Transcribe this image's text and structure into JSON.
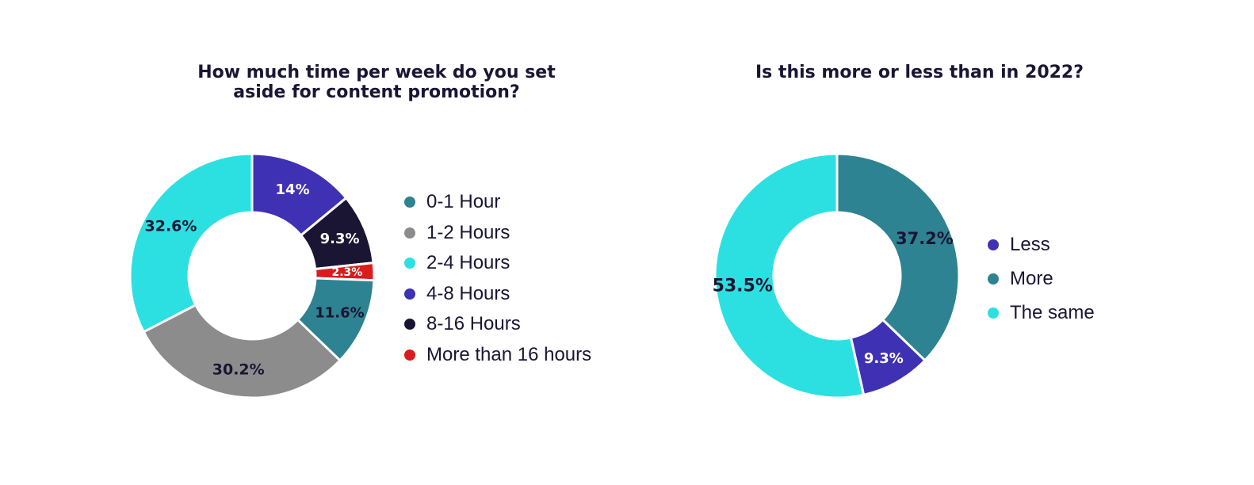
{
  "chart_data": [
    {
      "type": "pie",
      "title": "How much time per week do you set\naside for content promotion?",
      "legend_position": "right",
      "slices": [
        {
          "label": "4-8 Hours",
          "value": 14,
          "display": "14%",
          "color": "#3f31b3",
          "label_color": "#ffffff"
        },
        {
          "label": "8-16 Hours",
          "value": 9.3,
          "display": "9.3%",
          "color": "#1a1533",
          "label_color": "#ffffff"
        },
        {
          "label": "More than 16 hours",
          "value": 2.3,
          "display": "2.3%",
          "color": "#d91c1c",
          "label_color": "#ffffff"
        },
        {
          "label": "0-1 Hour",
          "value": 11.6,
          "display": "11.6%",
          "color": "#2d8391",
          "label_color": "#1a1533"
        },
        {
          "label": "1-2 Hours",
          "value": 30.2,
          "display": "30.2%",
          "color": "#8c8c8c",
          "label_color": "#1a1533"
        },
        {
          "label": "2-4 Hours",
          "value": 32.6,
          "display": "32.6%",
          "color": "#2ce0e2",
          "label_color": "#1a1533"
        }
      ],
      "legend": [
        {
          "label": "0-1 Hour",
          "color": "#2d8391"
        },
        {
          "label": "1-2 Hours",
          "color": "#8c8c8c"
        },
        {
          "label": "2-4 Hours",
          "color": "#2ce0e2"
        },
        {
          "label": "4-8 Hours",
          "color": "#3f31b3"
        },
        {
          "label": "8-16 Hours",
          "color": "#1a1533"
        },
        {
          "label": "More than 16 hours",
          "color": "#d91c1c"
        }
      ]
    },
    {
      "type": "pie",
      "title": "Is this more or less than in 2022?",
      "legend_position": "right",
      "slices": [
        {
          "label": "More",
          "value": 37.2,
          "display": "37.2%",
          "color": "#2d8391",
          "label_color": "#1a1533"
        },
        {
          "label": "Less",
          "value": 9.3,
          "display": "9.3%",
          "color": "#3f31b3",
          "label_color": "#ffffff"
        },
        {
          "label": "The same",
          "value": 53.5,
          "display": "53.5%",
          "color": "#2ce0e2",
          "label_color": "#1a1533"
        }
      ],
      "legend": [
        {
          "label": "Less",
          "color": "#3f31b3"
        },
        {
          "label": "More",
          "color": "#2d8391"
        },
        {
          "label": "The same",
          "color": "#2ce0e2"
        }
      ]
    }
  ]
}
